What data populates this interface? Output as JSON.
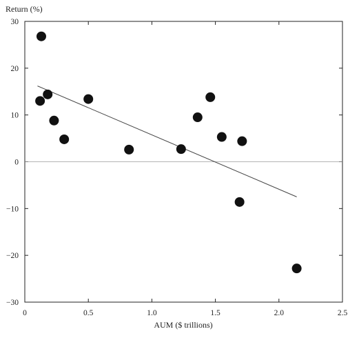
{
  "chart_data": {
    "type": "scatter",
    "title": "",
    "xlabel": "AUM ($ trillions)",
    "ylabel": "Return (%)",
    "xlim": [
      0,
      2.5
    ],
    "ylim": [
      -30,
      30
    ],
    "x_ticks": [
      0,
      0.5,
      1.0,
      1.5,
      2.0,
      2.5
    ],
    "x_tick_labels": [
      "0",
      "0.5",
      "1.0",
      "1.5",
      "2.0",
      "2.5"
    ],
    "y_ticks": [
      -30,
      -20,
      -10,
      0,
      10,
      20,
      30
    ],
    "y_tick_labels": [
      "−30",
      "−20",
      "−10",
      "0",
      "10",
      "20",
      "30"
    ],
    "grid": false,
    "zero_line": true,
    "points": [
      {
        "x": 0.12,
        "y": 13.0
      },
      {
        "x": 0.13,
        "y": 26.8
      },
      {
        "x": 0.18,
        "y": 14.4
      },
      {
        "x": 0.23,
        "y": 8.8
      },
      {
        "x": 0.31,
        "y": 4.8
      },
      {
        "x": 0.5,
        "y": 13.4
      },
      {
        "x": 0.82,
        "y": 2.6
      },
      {
        "x": 1.23,
        "y": 2.7
      },
      {
        "x": 1.36,
        "y": 9.5
      },
      {
        "x": 1.46,
        "y": 13.8
      },
      {
        "x": 1.55,
        "y": 5.3
      },
      {
        "x": 1.69,
        "y": -8.6
      },
      {
        "x": 1.71,
        "y": 4.4
      },
      {
        "x": 2.14,
        "y": -22.8
      }
    ],
    "trendline": {
      "x": [
        0.1,
        2.14
      ],
      "y": [
        16.2,
        -7.5
      ]
    },
    "colors": {
      "points": "#111111",
      "trendline": "#444444",
      "zero_line": "#9a9a9a",
      "axes": "#222222"
    }
  }
}
